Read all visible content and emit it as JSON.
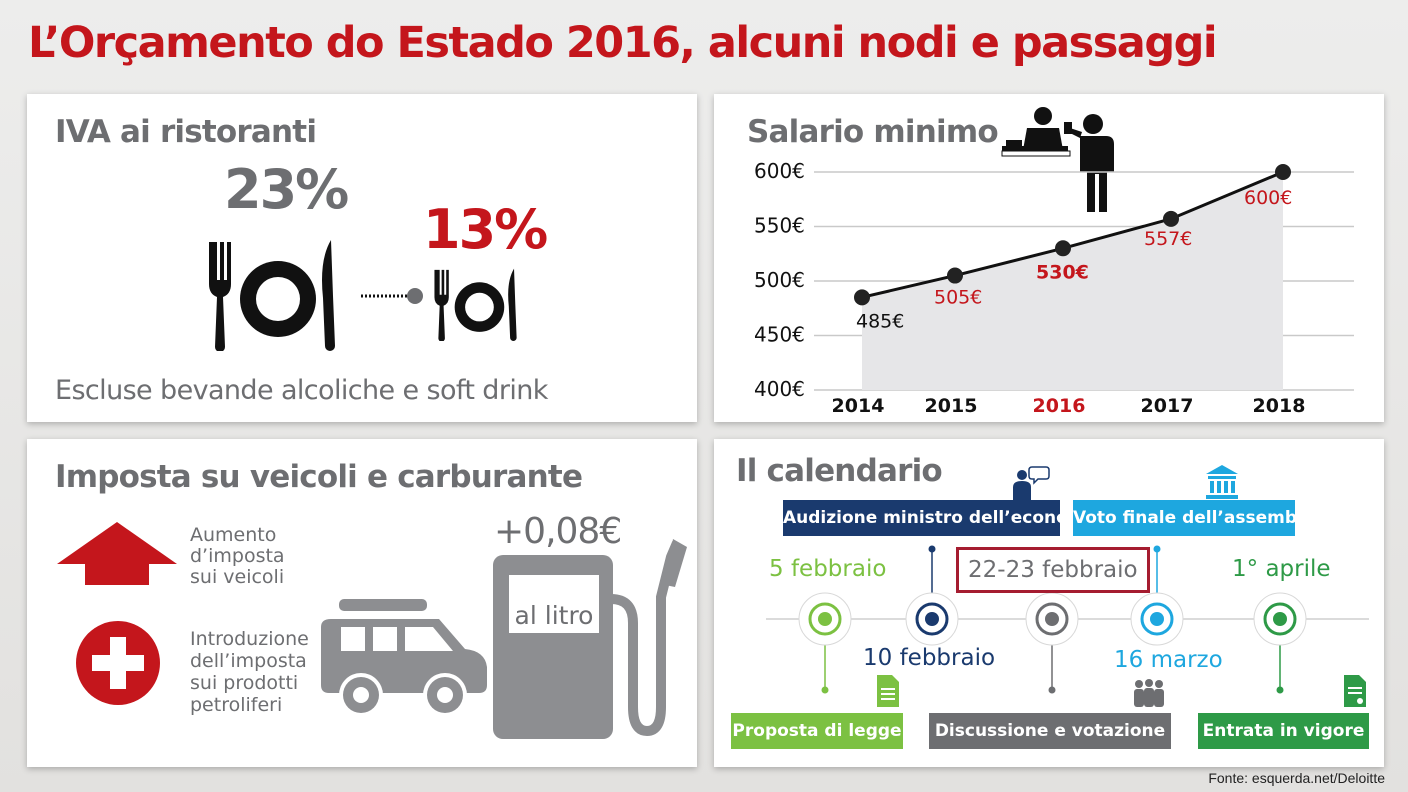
{
  "title": "L’Orçamento do Estado 2016, alcuni nodi e passaggi",
  "source": "Fonte: esquerda.net/Deloitte",
  "colors": {
    "red": "#c4161c",
    "gray": "#6d6e71",
    "navy": "#1a3a6e",
    "cyan": "#1ea7df",
    "green_light": "#7cc142",
    "green_dark": "#2e9a47"
  },
  "iva": {
    "title": "IVA ai ristoranti",
    "old_rate": "23%",
    "new_rate": "13%",
    "note": "Escluse bevande alcoliche e soft drink"
  },
  "salary": {
    "title": "Salario minimo",
    "chart_data": {
      "type": "line",
      "title": "Salario minimo",
      "x": [
        "2014",
        "2015",
        "2016",
        "2017",
        "2018"
      ],
      "values": [
        485,
        505,
        530,
        557,
        600
      ],
      "labels": [
        "485€",
        "505€",
        "530€",
        "557€",
        "600€"
      ],
      "yticks": [
        "600€",
        "550€",
        "500€",
        "450€",
        "400€"
      ],
      "ylim": [
        400,
        600
      ],
      "highlight": "2016",
      "grid": true
    }
  },
  "vehicles": {
    "title": "Imposta su veicoli e carburante",
    "item1": [
      "Aumento",
      "d’imposta",
      "sui veicoli"
    ],
    "item2": [
      "Introduzione",
      "dell’imposta",
      "sui prodotti",
      "petroliferi"
    ],
    "price": "+0,08€",
    "unit": "al litro"
  },
  "calendar": {
    "title": "Il calendario",
    "top_boxes": [
      "Audizione ministro dell’economia",
      "Voto finale dell’assemblea"
    ],
    "dates_top": [
      "5 febbraio",
      "22-23 febbraio",
      "1° aprile"
    ],
    "dates_bottom": [
      "10 febbraio",
      "16 marzo"
    ],
    "bottom_boxes": [
      "Proposta di legge",
      "Discussione e votazione",
      "Entrata in vigore"
    ]
  }
}
